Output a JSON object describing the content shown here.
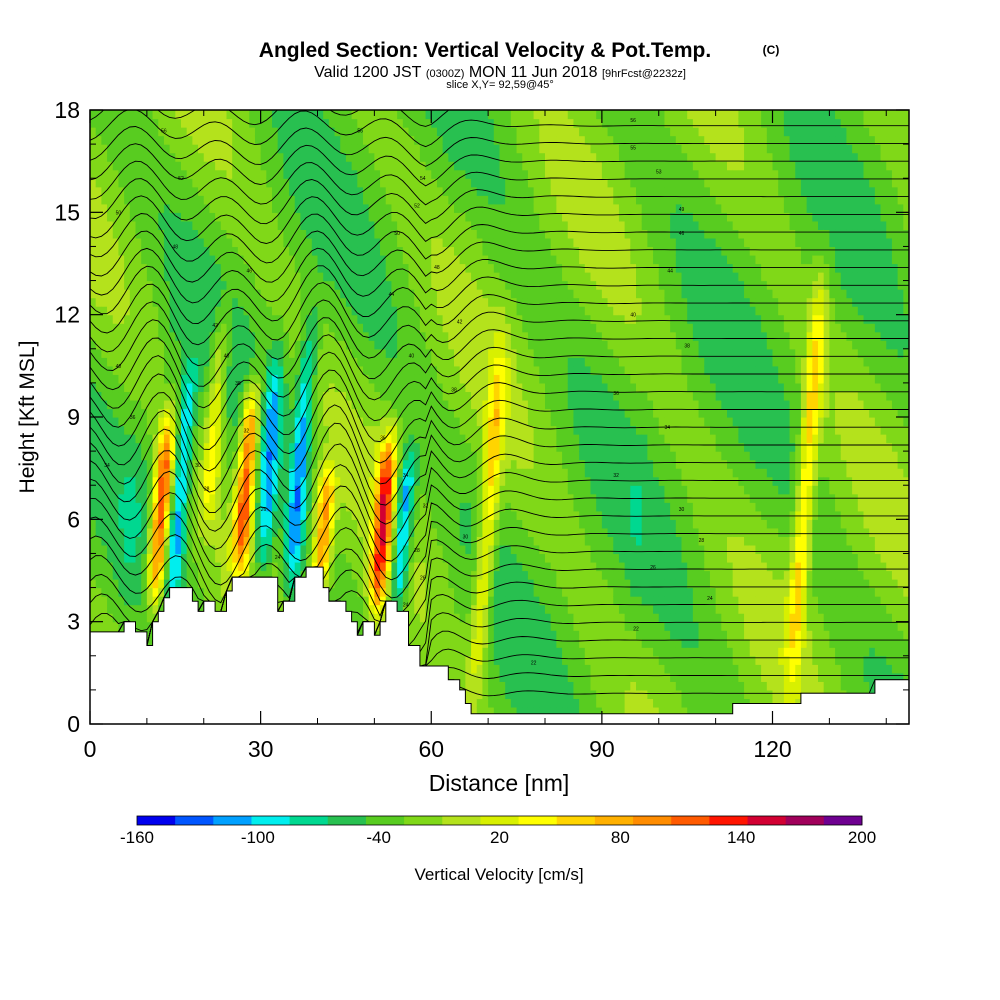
{
  "chart_data": {
    "type": "heatmap",
    "title": "Angled Section: Vertical Velocity & Pot.Temp.",
    "title_units": "(C)",
    "subtitle": {
      "valid": "Valid 1200 JST",
      "zulu": "(0300Z)",
      "date": "MON 11 Jun 2018",
      "forecast": "[9hrFcst@2232z]"
    },
    "slice_label": "slice X,Y= 92,59@45°",
    "xlabel": "Distance [nm]",
    "ylabel": "Height [Kft MSL]",
    "xlim": [
      0,
      144
    ],
    "ylim": [
      0,
      18
    ],
    "x_ticks": [
      0,
      30,
      60,
      90,
      120
    ],
    "y_ticks": [
      0,
      3,
      6,
      9,
      12,
      15,
      18
    ],
    "colorbar": {
      "label": "Vertical Velocity [cm/s]",
      "range": [
        -160,
        200
      ],
      "tick_values": [
        -160,
        -100,
        -40,
        20,
        80,
        140,
        200
      ],
      "colors": [
        "#0000ee",
        "#0055ff",
        "#00a0ff",
        "#00eeee",
        "#00d890",
        "#28c050",
        "#58cc20",
        "#80d818",
        "#b4e21c",
        "#d8f000",
        "#ffff00",
        "#ffd400",
        "#ffb000",
        "#ff8c00",
        "#ff5a00",
        "#ff1400",
        "#d20032",
        "#a0005a",
        "#6e0090"
      ]
    },
    "terrain_top_kft": [
      [
        0,
        2.7
      ],
      [
        6,
        2.7
      ],
      [
        6,
        3.0
      ],
      [
        8,
        3.0
      ],
      [
        8,
        2.7
      ],
      [
        10,
        2.7
      ],
      [
        10,
        2.3
      ],
      [
        11,
        2.3
      ],
      [
        11,
        3.0
      ],
      [
        12,
        3.0
      ],
      [
        12,
        3.3
      ],
      [
        13,
        3.3
      ],
      [
        13,
        3.7
      ],
      [
        14,
        3.7
      ],
      [
        14,
        4.0
      ],
      [
        18,
        4.0
      ],
      [
        18,
        3.6
      ],
      [
        19,
        3.6
      ],
      [
        19,
        3.3
      ],
      [
        20,
        3.3
      ],
      [
        20,
        3.6
      ],
      [
        22,
        3.6
      ],
      [
        22,
        3.3
      ],
      [
        24,
        3.3
      ],
      [
        24,
        3.9
      ],
      [
        25,
        3.9
      ],
      [
        25,
        4.3
      ],
      [
        33,
        4.3
      ],
      [
        33,
        3.3
      ],
      [
        34,
        3.3
      ],
      [
        34,
        3.6
      ],
      [
        36,
        3.6
      ],
      [
        36,
        4.3
      ],
      [
        38,
        4.3
      ],
      [
        38,
        4.6
      ],
      [
        41,
        4.6
      ],
      [
        41,
        4.0
      ],
      [
        42,
        4.0
      ],
      [
        42,
        3.6
      ],
      [
        45,
        3.6
      ],
      [
        45,
        3.3
      ],
      [
        46,
        3.3
      ],
      [
        46,
        3.0
      ],
      [
        47,
        3.0
      ],
      [
        47,
        2.6
      ],
      [
        48,
        2.6
      ],
      [
        48,
        3.0
      ],
      [
        50,
        3.0
      ],
      [
        50,
        2.6
      ],
      [
        51,
        2.6
      ],
      [
        51,
        3.0
      ],
      [
        52,
        3.0
      ],
      [
        52,
        3.6
      ],
      [
        54,
        3.6
      ],
      [
        54,
        3.3
      ],
      [
        56,
        3.3
      ],
      [
        56,
        2.3
      ],
      [
        58,
        2.3
      ],
      [
        58,
        1.7
      ],
      [
        63,
        1.7
      ],
      [
        63,
        1.3
      ],
      [
        65,
        1.3
      ],
      [
        65,
        1.0
      ],
      [
        66,
        1.0
      ],
      [
        66,
        0.6
      ],
      [
        67,
        0.6
      ],
      [
        67,
        0.3
      ],
      [
        113,
        0.3
      ],
      [
        113,
        0.6
      ],
      [
        125,
        0.6
      ],
      [
        125,
        0.9
      ],
      [
        138,
        0.9
      ],
      [
        138,
        1.3
      ],
      [
        144,
        1.3
      ]
    ],
    "velocity_features_cm_s": [
      {
        "x": 12.5,
        "z_range": [
          3.5,
          9.0
        ],
        "w": 130
      },
      {
        "x": 16.0,
        "z_range": [
          3.8,
          10.5
        ],
        "w": -110
      },
      {
        "x": 27.5,
        "z_range": [
          4.5,
          10.0
        ],
        "w": 120
      },
      {
        "x": 31.5,
        "z_range": [
          4.0,
          11.0
        ],
        "w": -100
      },
      {
        "x": 37.0,
        "z_range": [
          3.5,
          12.0
        ],
        "w": -110
      },
      {
        "x": 41.0,
        "z_range": [
          3.7,
          7.5
        ],
        "w": 90
      },
      {
        "x": 51.5,
        "z_range": [
          3.2,
          8.5
        ],
        "w": 120
      },
      {
        "x": 55.0,
        "z_range": [
          3.3,
          8.0
        ],
        "w": -130
      },
      {
        "x": 70.0,
        "z_range": [
          1.0,
          11.0
        ],
        "w": 50
      },
      {
        "x": 126.0,
        "z_range": [
          1.5,
          13.0
        ],
        "w": 55
      },
      {
        "x": 22.0,
        "z_range": [
          6.0,
          12.0
        ],
        "w": 40
      },
      {
        "x": 14.0,
        "z_range": [
          7.5,
          13.5
        ],
        "w": -40
      },
      {
        "x": 96.0,
        "z_range": [
          1.5,
          10.0
        ],
        "w": -35
      },
      {
        "x": 105.0,
        "z_range": [
          2.0,
          17.0
        ],
        "w": -30
      },
      {
        "x": 7.0,
        "z_range": [
          2.0,
          9.0
        ],
        "w": -40
      }
    ],
    "isentrope_labels": [
      {
        "x": 13,
        "z": 17.4,
        "text": "56"
      },
      {
        "x": 16,
        "z": 16.0,
        "text": "52"
      },
      {
        "x": 5,
        "z": 15.0,
        "text": "50"
      },
      {
        "x": 15,
        "z": 14.0,
        "text": "48"
      },
      {
        "x": 28,
        "z": 13.3,
        "text": "46"
      },
      {
        "x": 22,
        "z": 11.7,
        "text": "42"
      },
      {
        "x": 24,
        "z": 10.8,
        "text": "40"
      },
      {
        "x": 26,
        "z": 10.0,
        "text": "38"
      },
      {
        "x": 5,
        "z": 10.5,
        "text": "40"
      },
      {
        "x": 7.5,
        "z": 9.0,
        "text": "36"
      },
      {
        "x": 3,
        "z": 7.6,
        "text": "34"
      },
      {
        "x": 27.5,
        "z": 8.6,
        "text": "32"
      },
      {
        "x": 19,
        "z": 7.6,
        "text": "30"
      },
      {
        "x": 20.5,
        "z": 6.9,
        "text": "28"
      },
      {
        "x": 30.5,
        "z": 6.3,
        "text": "26"
      },
      {
        "x": 33,
        "z": 4.9,
        "text": "24"
      },
      {
        "x": 47.5,
        "z": 17.4,
        "text": "56"
      },
      {
        "x": 58.5,
        "z": 16.0,
        "text": "54"
      },
      {
        "x": 57.5,
        "z": 15.2,
        "text": "52"
      },
      {
        "x": 54,
        "z": 14.4,
        "text": "50"
      },
      {
        "x": 61,
        "z": 13.4,
        "text": "48"
      },
      {
        "x": 53,
        "z": 12.6,
        "text": "44"
      },
      {
        "x": 65,
        "z": 11.8,
        "text": "42"
      },
      {
        "x": 56.5,
        "z": 10.8,
        "text": "40"
      },
      {
        "x": 64,
        "z": 9.8,
        "text": "38"
      },
      {
        "x": 51.5,
        "z": 8.4,
        "text": "36"
      },
      {
        "x": 55.5,
        "z": 7.3,
        "text": "34"
      },
      {
        "x": 59,
        "z": 6.4,
        "text": "32"
      },
      {
        "x": 66,
        "z": 5.5,
        "text": "30"
      },
      {
        "x": 57.5,
        "z": 5.1,
        "text": "28"
      },
      {
        "x": 58.5,
        "z": 4.3,
        "text": "26"
      },
      {
        "x": 55.5,
        "z": 3.5,
        "text": "24"
      },
      {
        "x": 78,
        "z": 1.8,
        "text": "22"
      },
      {
        "x": 95.5,
        "z": 17.7,
        "text": "56"
      },
      {
        "x": 95.5,
        "z": 16.9,
        "text": "55"
      },
      {
        "x": 100,
        "z": 16.2,
        "text": "53"
      },
      {
        "x": 104,
        "z": 15.1,
        "text": "49"
      },
      {
        "x": 104,
        "z": 14.4,
        "text": "46"
      },
      {
        "x": 102,
        "z": 13.3,
        "text": "44"
      },
      {
        "x": 95.5,
        "z": 12.0,
        "text": "40"
      },
      {
        "x": 105,
        "z": 11.1,
        "text": "38"
      },
      {
        "x": 92.5,
        "z": 9.7,
        "text": "36"
      },
      {
        "x": 101.5,
        "z": 8.7,
        "text": "34"
      },
      {
        "x": 92.5,
        "z": 7.3,
        "text": "32"
      },
      {
        "x": 104,
        "z": 6.3,
        "text": "30"
      },
      {
        "x": 107.5,
        "z": 5.4,
        "text": "28"
      },
      {
        "x": 99,
        "z": 4.6,
        "text": "26"
      },
      {
        "x": 109,
        "z": 3.7,
        "text": "24"
      },
      {
        "x": 96,
        "z": 2.8,
        "text": "22"
      }
    ]
  }
}
